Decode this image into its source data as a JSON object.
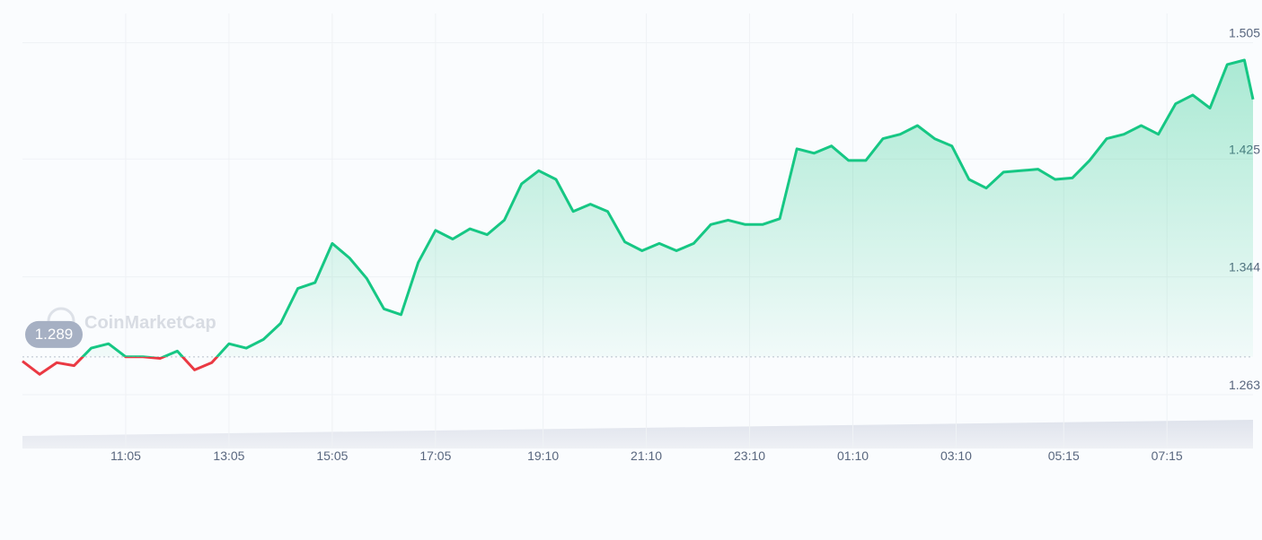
{
  "chart_data": {
    "type": "line",
    "watermark": "CoinMarketCap",
    "x": [
      "09:05",
      "09:25",
      "09:45",
      "10:05",
      "10:25",
      "10:45",
      "11:05",
      "11:25",
      "11:45",
      "12:05",
      "12:25",
      "12:45",
      "13:05",
      "13:25",
      "13:45",
      "14:05",
      "14:25",
      "14:45",
      "15:05",
      "15:25",
      "15:45",
      "16:05",
      "16:25",
      "16:45",
      "17:05",
      "17:25",
      "17:45",
      "18:05",
      "18:25",
      "18:45",
      "19:05",
      "19:25",
      "19:45",
      "20:05",
      "20:25",
      "20:45",
      "21:05",
      "21:25",
      "21:45",
      "22:05",
      "22:25",
      "22:45",
      "23:05",
      "23:25",
      "23:45",
      "00:05",
      "00:25",
      "00:45",
      "01:05",
      "01:25",
      "01:45",
      "02:05",
      "02:25",
      "02:45",
      "03:05",
      "03:25",
      "03:45",
      "04:05",
      "04:25",
      "04:45",
      "05:05",
      "05:25",
      "05:45",
      "06:05",
      "06:25",
      "06:45",
      "07:05",
      "07:25",
      "07:45",
      "08:05",
      "08:25",
      "08:45",
      "08:55"
    ],
    "values": [
      1.286,
      1.277,
      1.285,
      1.283,
      1.295,
      1.298,
      1.289,
      1.289,
      1.288,
      1.293,
      1.28,
      1.285,
      1.298,
      1.295,
      1.301,
      1.312,
      1.336,
      1.34,
      1.367,
      1.357,
      1.343,
      1.322,
      1.318,
      1.354,
      1.376,
      1.37,
      1.377,
      1.373,
      1.383,
      1.408,
      1.417,
      1.411,
      1.389,
      1.394,
      1.389,
      1.368,
      1.362,
      1.367,
      1.362,
      1.367,
      1.38,
      1.383,
      1.38,
      1.38,
      1.384,
      1.432,
      1.429,
      1.434,
      1.424,
      1.424,
      1.439,
      1.442,
      1.448,
      1.439,
      1.434,
      1.411,
      1.405,
      1.416,
      1.417,
      1.418,
      1.411,
      1.412,
      1.424,
      1.439,
      1.442,
      1.448,
      1.442,
      1.463,
      1.469,
      1.46,
      1.49,
      1.493,
      1.466
    ],
    "baseline": 1.289,
    "up_color": "#16c784",
    "down_color": "#ea3943",
    "xlim": [
      "09:05",
      "08:55"
    ],
    "xticks": [
      "11:05",
      "13:05",
      "15:05",
      "17:05",
      "19:10",
      "21:10",
      "23:10",
      "01:10",
      "03:10",
      "05:15",
      "07:15"
    ],
    "ylim": [
      1.226,
      1.522
    ],
    "yticks": [
      1.263,
      1.344,
      1.425,
      1.505
    ],
    "grid": true
  }
}
